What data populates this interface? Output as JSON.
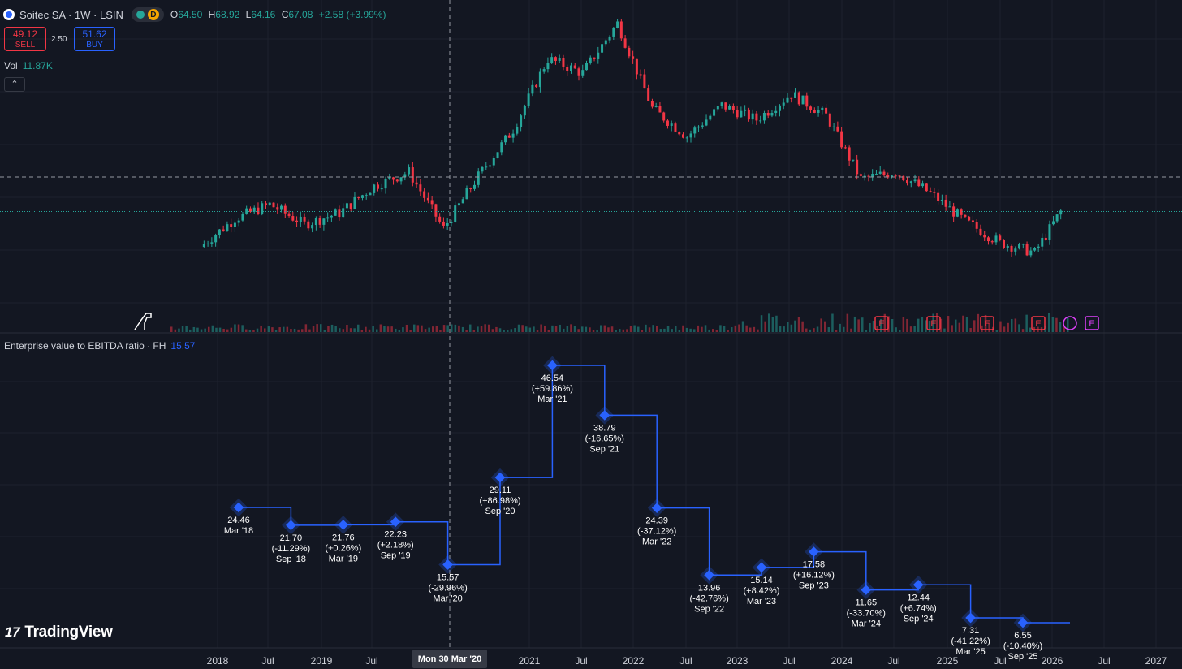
{
  "header": {
    "symbol": "Soitec SA · 1W · LSIN",
    "market_badge": "D",
    "ohlc": {
      "o_label": "O",
      "o": "64.50",
      "h_label": "H",
      "h": "68.92",
      "l_label": "L",
      "l": "64.16",
      "c_label": "C",
      "c": "67.08",
      "change": "+2.58 (+3.99%)"
    }
  },
  "trade": {
    "sell_price": "49.12",
    "sell_label": "SELL",
    "spread": "2.50",
    "buy_price": "51.62",
    "buy_label": "BUY"
  },
  "volume": {
    "label": "Vol",
    "value": "11.87K"
  },
  "indicator": {
    "title": "Enterprise value to EBITDA ratio · FH",
    "value": "15.57"
  },
  "crosshair_date": "Mon 30 Mar '20",
  "brand": "TradingView",
  "colors": {
    "up": "#26a69a",
    "down": "#f23645",
    "accent": "#2962ff",
    "earnings": "#f23645",
    "dividend": "#e040fb"
  },
  "chart_data": [
    {
      "type": "line",
      "name": "price",
      "style": "candlestick",
      "x_ticks": [
        "2018",
        "Jul",
        "2019",
        "Jul",
        "2021",
        "Jul",
        "2022",
        "Jul",
        "2023",
        "Jul",
        "2024",
        "Jul",
        "2025",
        "Jul",
        "2026",
        "Jul",
        "2027"
      ],
      "x": [
        "2017-11",
        "2018-03",
        "2018-07",
        "2018-11",
        "2019-03",
        "2019-07",
        "2019-11",
        "2020-03",
        "2020-07",
        "2020-11",
        "2021-03",
        "2021-07",
        "2021-11",
        "2022-03",
        "2022-07",
        "2022-11",
        "2023-03",
        "2023-07",
        "2023-11",
        "2024-03",
        "2024-07",
        "2024-11",
        "2025-03",
        "2025-07",
        "2025-11",
        "2026-02"
      ],
      "values": [
        42,
        62,
        72,
        58,
        66,
        85,
        95,
        55,
        92,
        125,
        175,
        165,
        200,
        140,
        120,
        142,
        132,
        150,
        135,
        90,
        95,
        80,
        60,
        45,
        38,
        67
      ],
      "earnings_markers": 5,
      "grid": true
    },
    {
      "type": "line",
      "name": "Enterprise value to EBITDA ratio · FH",
      "style": "step",
      "points": [
        {
          "value": "24.46",
          "change": "",
          "date": "Mar '18"
        },
        {
          "value": "21.70",
          "change": "(-11.29%)",
          "date": "Sep '18"
        },
        {
          "value": "21.76",
          "change": "(+0.26%)",
          "date": "Mar '19"
        },
        {
          "value": "22.23",
          "change": "(+2.18%)",
          "date": "Sep '19"
        },
        {
          "value": "15.57",
          "change": "(-29.96%)",
          "date": "Mar '20"
        },
        {
          "value": "29.11",
          "change": "(+86.98%)",
          "date": "Sep '20"
        },
        {
          "value": "46.54",
          "change": "(+59.86%)",
          "date": "Mar '21"
        },
        {
          "value": "38.79",
          "change": "(-16.65%)",
          "date": "Sep '21"
        },
        {
          "value": "24.39",
          "change": "(-37.12%)",
          "date": "Mar '22"
        },
        {
          "value": "13.96",
          "change": "(-42.76%)",
          "date": "Sep '22"
        },
        {
          "value": "15.14",
          "change": "(+8.42%)",
          "date": "Mar '23"
        },
        {
          "value": "17.58",
          "change": "(+16.12%)",
          "date": "Sep '23"
        },
        {
          "value": "11.65",
          "change": "(-33.70%)",
          "date": "Mar '24"
        },
        {
          "value": "12.44",
          "change": "(+6.74%)",
          "date": "Sep '24"
        },
        {
          "value": "7.31",
          "change": "(-41.22%)",
          "date": "Mar '25"
        },
        {
          "value": "6.55",
          "change": "(-10.40%)",
          "date": "Sep '25"
        }
      ]
    }
  ]
}
